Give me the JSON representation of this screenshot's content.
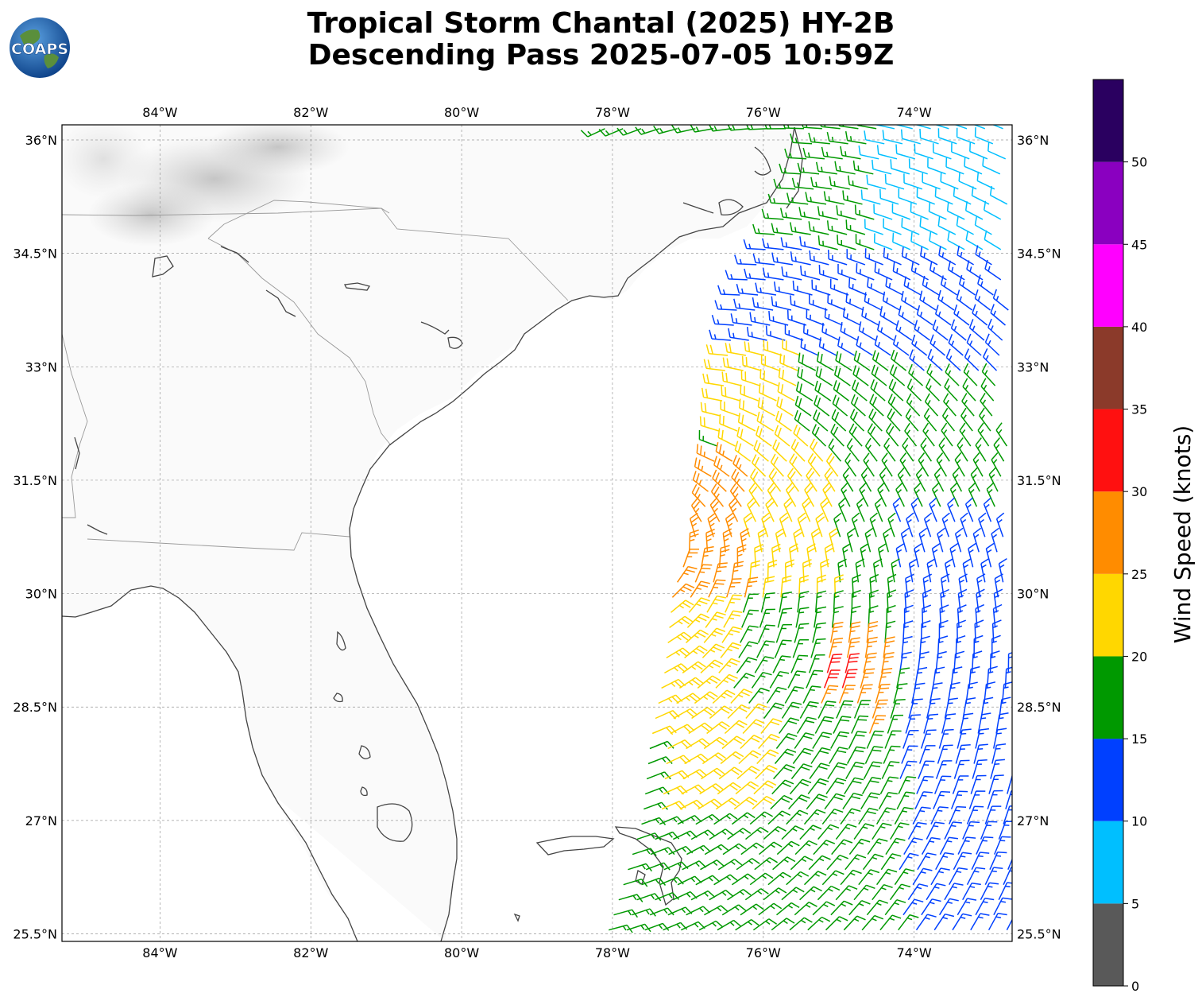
{
  "header": {
    "title_line1": "Tropical Storm Chantal (2025) HY-2B",
    "title_line2": "Descending Pass 2025-07-05 10:59Z",
    "logo_text": "COAPS"
  },
  "map": {
    "lon_range": [
      -85.3,
      -72.7
    ],
    "lat_range": [
      25.4,
      36.2
    ],
    "lon_ticks": [
      {
        "value": -84,
        "label": "84°W"
      },
      {
        "value": -82,
        "label": "82°W"
      },
      {
        "value": -80,
        "label": "80°W"
      },
      {
        "value": -78,
        "label": "78°W"
      },
      {
        "value": -76,
        "label": "76°W"
      },
      {
        "value": -74,
        "label": "74°W"
      }
    ],
    "lat_ticks": [
      {
        "value": 36,
        "label": "36°N"
      },
      {
        "value": 34.5,
        "label": "34.5°N"
      },
      {
        "value": 33,
        "label": "33°N"
      },
      {
        "value": 31.5,
        "label": "31.5°N"
      },
      {
        "value": 30,
        "label": "30°N"
      },
      {
        "value": 28.5,
        "label": "28.5°N"
      },
      {
        "value": 27,
        "label": "27°N"
      },
      {
        "value": 25.5,
        "label": "25.5°N"
      }
    ],
    "gridlines": true,
    "background_colors": {
      "ocean": "#ffffff",
      "land": "#fafafa",
      "coast": "#444444",
      "border": "#999999"
    }
  },
  "colorbar": {
    "label": "Wind Speed (knots)",
    "bins": [
      {
        "min": 0,
        "max": 5,
        "color": "#595959"
      },
      {
        "min": 5,
        "max": 10,
        "color": "#00bfff"
      },
      {
        "min": 10,
        "max": 15,
        "color": "#0040ff"
      },
      {
        "min": 15,
        "max": 20,
        "color": "#009900"
      },
      {
        "min": 20,
        "max": 25,
        "color": "#ffd700"
      },
      {
        "min": 25,
        "max": 30,
        "color": "#ff8c00"
      },
      {
        "min": 30,
        "max": 35,
        "color": "#ff1010"
      },
      {
        "min": 35,
        "max": 40,
        "color": "#8b3a2a"
      },
      {
        "min": 40,
        "max": 45,
        "color": "#ff00ff"
      },
      {
        "min": 45,
        "max": 50,
        "color": "#8a00c0"
      },
      {
        "min": 50,
        "max": 55,
        "color": "#2a0060"
      }
    ],
    "tick_labels": [
      "0",
      "5",
      "10",
      "15",
      "20",
      "25",
      "30",
      "35",
      "40",
      "45",
      "50"
    ]
  },
  "wind_field": {
    "swath_west_edge": [
      [
        36.1,
        -75.3
      ],
      [
        35.0,
        -75.7
      ],
      [
        34.0,
        -76.3
      ],
      [
        33.0,
        -76.5
      ],
      [
        32.0,
        -76.6
      ],
      [
        31.0,
        -76.8
      ],
      [
        30.0,
        -77.2
      ],
      [
        29.0,
        -77.3
      ],
      [
        28.0,
        -77.5
      ],
      [
        27.0,
        -77.6
      ],
      [
        26.0,
        -77.9
      ],
      [
        25.4,
        -78.1
      ]
    ],
    "east_edge_lon": -72.75,
    "regions": [
      {
        "lat": [
          34.2,
          36.2
        ],
        "lon": [
          -76.0,
          -74.5
        ],
        "speed": 17
      },
      {
        "lat": [
          34.0,
          36.2
        ],
        "lon": [
          -74.5,
          -72.7
        ],
        "speed": 9
      },
      {
        "lat": [
          32.8,
          34.6
        ],
        "lon": [
          -76.5,
          -75.2
        ],
        "speed": 14
      },
      {
        "lat": [
          32.8,
          34.4
        ],
        "lon": [
          -75.2,
          -72.7
        ],
        "speed": 13
      },
      {
        "lat": [
          31.5,
          33.2
        ],
        "lon": [
          -76.6,
          -75.4
        ],
        "speed": 22
      },
      {
        "lat": [
          31.5,
          33.0
        ],
        "lon": [
          -75.4,
          -74.0
        ],
        "speed": 18
      },
      {
        "lat": [
          29.8,
          31.8
        ],
        "lon": [
          -77.3,
          -76.2
        ],
        "speed": 27
      },
      {
        "lat": [
          29.8,
          31.8
        ],
        "lon": [
          -76.2,
          -75.0
        ],
        "speed": 22
      },
      {
        "lat": [
          29.0,
          31.8
        ],
        "lon": [
          -75.0,
          -73.8
        ],
        "speed": 17
      },
      {
        "lat": [
          28.2,
          29.9
        ],
        "lon": [
          -77.4,
          -76.4
        ],
        "speed": 23
      },
      {
        "lat": [
          28.0,
          29.4
        ],
        "lon": [
          -75.3,
          -74.4
        ],
        "speed": 27
      },
      {
        "lat": [
          28.6,
          29.0
        ],
        "lon": [
          -75.2,
          -74.9
        ],
        "speed": 31
      },
      {
        "lat": [
          26.8,
          28.4
        ],
        "lon": [
          -77.5,
          -76.0
        ],
        "speed": 21
      },
      {
        "lat": [
          26.8,
          28.4
        ],
        "lon": [
          -76.0,
          -74.6
        ],
        "speed": 18
      },
      {
        "lat": [
          25.4,
          27.0
        ],
        "lon": [
          -77.9,
          -74.8
        ],
        "speed": 17
      },
      {
        "lat": [
          25.4,
          31.0
        ],
        "lon": [
          -74.2,
          -72.7
        ],
        "speed": 13
      }
    ],
    "default_speed": 15
  }
}
